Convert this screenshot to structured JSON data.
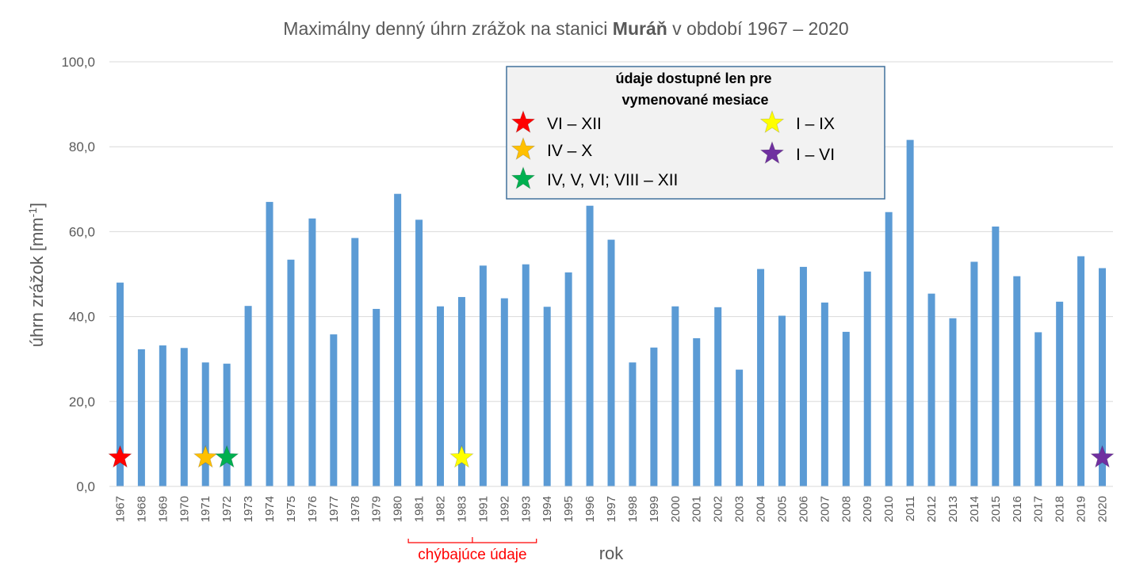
{
  "chart_data": {
    "type": "bar",
    "title_parts": [
      "Maximálny denný úhrn zrážok na stanici ",
      "Muráň",
      " v období 1967 – 2020"
    ],
    "xlabel": "rok",
    "ylabel": "úhrn zrážok [mm",
    "ylabel_sup": "-1",
    "ylabel_end": "]",
    "ylim": [
      0,
      100
    ],
    "yticks": [
      "0,0",
      "20,0",
      "40,0",
      "60,0",
      "80,0",
      "100,0"
    ],
    "grid": true,
    "bar_color": "#5b9bd5",
    "categories": [
      "1967",
      "1968",
      "1969",
      "1970",
      "1971",
      "1972",
      "1973",
      "1974",
      "1975",
      "1976",
      "1977",
      "1978",
      "1979",
      "1980",
      "1981",
      "1982",
      "1983",
      "1991",
      "1992",
      "1993",
      "1994",
      "1995",
      "1996",
      "1997",
      "1998",
      "1999",
      "2000",
      "2001",
      "2002",
      "2003",
      "2004",
      "2005",
      "2006",
      "2007",
      "2008",
      "2009",
      "2010",
      "2011",
      "2012",
      "2013",
      "2014",
      "2015",
      "2016",
      "2017",
      "2018",
      "2019",
      "2020"
    ],
    "values": [
      48.0,
      32.3,
      33.2,
      32.6,
      29.2,
      28.9,
      42.5,
      67.0,
      53.4,
      63.1,
      35.8,
      58.5,
      41.8,
      68.9,
      62.8,
      42.4,
      44.6,
      52.0,
      44.3,
      52.3,
      42.3,
      50.4,
      66.1,
      58.1,
      29.2,
      32.7,
      42.4,
      34.9,
      42.2,
      27.5,
      51.2,
      40.2,
      51.7,
      43.3,
      36.4,
      50.6,
      64.6,
      81.6,
      45.4,
      39.6,
      52.9,
      61.2,
      49.5,
      36.3,
      43.5,
      54.2,
      51.4
    ],
    "markers": [
      {
        "category": "1967",
        "color": "#ff0000",
        "value": 6.8
      },
      {
        "category": "1971",
        "color": "#ffc000",
        "value": 6.8
      },
      {
        "category": "1972",
        "color": "#00b050",
        "value": 6.8
      },
      {
        "category": "1983",
        "color": "#ffff00",
        "value": 6.8
      },
      {
        "category": "2020",
        "color": "#7030a0",
        "value": 6.8
      }
    ],
    "annotation": {
      "text": "chýbajúce údaje",
      "color": "#ff0000",
      "from": "1981",
      "to": "1993"
    },
    "legend": {
      "title_lines": [
        "údaje dostupné len pre",
        "vymenované mesiace"
      ],
      "placement": "top-center",
      "items": [
        {
          "label": "VI – XII",
          "color": "#ff0000"
        },
        {
          "label": "IV – X",
          "color": "#ffc000"
        },
        {
          "label": "IV, V, VI; VIII – XII",
          "color": "#00b050"
        },
        {
          "label": "I – IX",
          "color": "#ffff00"
        },
        {
          "label": "I – VI",
          "color": "#7030a0"
        }
      ]
    }
  }
}
